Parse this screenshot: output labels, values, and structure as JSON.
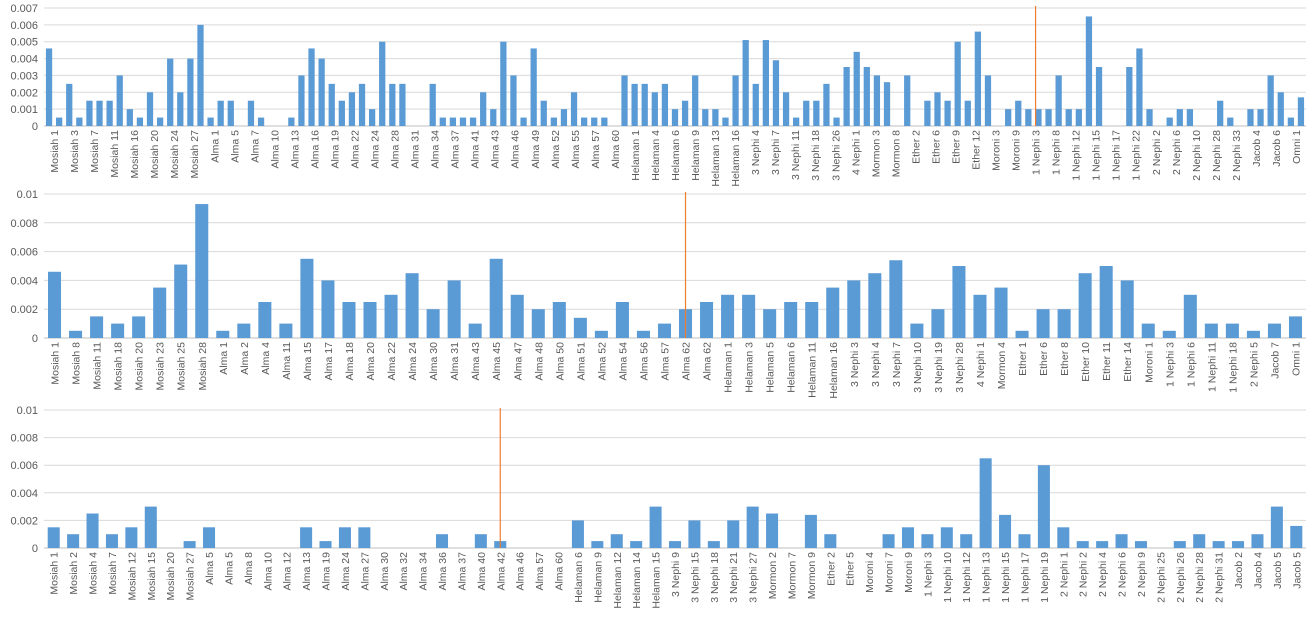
{
  "colors": {
    "bar": "#5b9bd5",
    "divider": "#ed7d31",
    "grid": "#d9d9d9",
    "axis": "#bfbfbf",
    "text": "#595959"
  },
  "chart_data": [
    {
      "type": "bar",
      "ylim": [
        0,
        0.007
      ],
      "yticks": [
        "0",
        "0.001",
        "0.002",
        "0.003",
        "0.004",
        "0.005",
        "0.006",
        "0.007"
      ],
      "grid": true,
      "divider_after_index": 49,
      "tick_labels": [
        "Mosiah 1",
        "Mosiah 3",
        "Mosiah 7",
        "Mosiah 11",
        "Mosiah 16",
        "Mosiah 20",
        "Mosiah 24",
        "Mosiah 27",
        "Alma 1",
        "Alma 5",
        "Alma 7",
        "Alma 10",
        "Alma 13",
        "Alma 16",
        "Alma 19",
        "Alma 22",
        "Alma 24",
        "Alma 28",
        "Alma 31",
        "Alma 34",
        "Alma 37",
        "Alma 41",
        "Alma 43",
        "Alma 46",
        "Alma 49",
        "Alma 52",
        "Alma 55",
        "Alma 57",
        "Alma 60",
        "Helaman 1",
        "Helaman 4",
        "Helaman 6",
        "Helaman 9",
        "Helaman 13",
        "Helaman 16",
        "3 Nephi 4",
        "3 Nephi 7",
        "3 Nephi 11",
        "3 Nephi 18",
        "3 Nephi 26",
        "4 Nephi 1",
        "Mormon 3",
        "Mormon 8",
        "Ether 2",
        "Ether 6",
        "Ether 9",
        "Ether 12",
        "Moroni 3",
        "Moroni 9",
        "1 Nephi 3",
        "1 Nephi 8",
        "1 Nephi 12",
        "1 Nephi 15",
        "1 Nephi 17",
        "1 Nephi 22",
        "2 Nephi 2",
        "2 Nephi 6",
        "2 Nephi 10",
        "2 Nephi 28",
        "2 Nephi 33",
        "Jacob 4",
        "Jacob 6",
        "Omni 1"
      ],
      "values": [
        0.0046,
        0.0005,
        0.0025,
        0.0005,
        0.0015,
        0.0015,
        0.0015,
        0.003,
        0.001,
        0.0005,
        0.002,
        0.0005,
        0.004,
        0.002,
        0.004,
        0.006,
        0.0005,
        0.0015,
        0.0015,
        0,
        0.0015,
        0.0005,
        0,
        0,
        0.0005,
        0.003,
        0.0046,
        0.004,
        0.0025,
        0.0015,
        0.002,
        0.0025,
        0.001,
        0.005,
        0.0025,
        0.0025,
        0,
        0,
        0.0025,
        0.0005,
        0.0005,
        0.0005,
        0.0005,
        0.002,
        0.001,
        0.005,
        0.003,
        0.0005,
        0.0046,
        0.0015,
        0.0005,
        0.001,
        0.002,
        0.0005,
        0.0005,
        0.0005,
        0,
        0.003,
        0.0025,
        0.0025,
        0.002,
        0.0025,
        0.001,
        0.0015,
        0.003,
        0.001,
        0.001,
        0.0005,
        0.003,
        0.0051,
        0.0025,
        0.0051,
        0.0039,
        0.002,
        0.0005,
        0.0015,
        0.0015,
        0.0025,
        0.0005,
        0.0035,
        0.0044,
        0.0035,
        0.003,
        0.0026,
        0,
        0.003,
        0,
        0.0015,
        0.002,
        0.0015,
        0.005,
        0.0015,
        0.0056,
        0.003,
        0,
        0.001,
        0.0015,
        0.001,
        0.001,
        0.001,
        0.003,
        0.001,
        0.001,
        0.0065,
        0.0035,
        0,
        0,
        0.0035,
        0.0046,
        0.001,
        0,
        0.0005,
        0.001,
        0.001,
        0,
        0,
        0.0015,
        0.0005,
        0,
        0.001,
        0.001,
        0.003,
        0.002,
        0.0005,
        0.0017
      ]
    },
    {
      "type": "bar",
      "ylim": [
        0,
        0.01
      ],
      "yticks": [
        "0",
        "0.002",
        "0.004",
        "0.006",
        "0.008",
        "0.01"
      ],
      "grid": true,
      "divider_after_index": 30,
      "tick_labels": [
        "Mosiah 1",
        "Mosiah 8",
        "Mosiah 11",
        "Mosiah 18",
        "Mosiah 20",
        "Mosiah 23",
        "Mosiah 25",
        "Mosiah 28",
        "Alma 1",
        "Alma 2",
        "Alma 4",
        "Alma 11",
        "Alma 15",
        "Alma 17",
        "Alma 18",
        "Alma 20",
        "Alma 22",
        "Alma 24",
        "Alma 30",
        "Alma 31",
        "Alma 43",
        "Alma 45",
        "Alma 47",
        "Alma 48",
        "Alma 50",
        "Alma 51",
        "Alma 52",
        "Alma 54",
        "Alma 56",
        "Alma 57",
        "Alma 62",
        "Alma 62",
        "Helaman 1",
        "Helaman 3",
        "Helaman 5",
        "Helaman 6",
        "Helaman 11",
        "Helaman 16",
        "3 Nephi 3",
        "3 Nephi 4",
        "3 Nephi 7",
        "3 Nephi 10",
        "3 Nephi 19",
        "3 Nephi 28",
        "4 Nephi 1",
        "Mormon 4",
        "Ether 1",
        "Ether 6",
        "Ether 8",
        "Ether 10",
        "Ether 11",
        "Ether 14",
        "Moroni 1",
        "1 Nephi 3",
        "1 Nephi 6",
        "1 Nephi 11",
        "1 Nephi 18",
        "2 Nephi 5",
        "Jacob 7",
        "Omni 1"
      ],
      "values": [
        0.0046,
        0.0005,
        0.0015,
        0.001,
        0.0015,
        0.0035,
        0.0051,
        0.0093,
        0.0005,
        0.001,
        0.0025,
        0.001,
        0.0055,
        0.004,
        0.0025,
        0.0025,
        0.003,
        0.0045,
        0.002,
        0.004,
        0.001,
        0.0055,
        0.003,
        0.002,
        0.0025,
        0.0014,
        0.0005,
        0.0025,
        0.0005,
        0.001,
        0.002,
        0.0025,
        0.003,
        0.003,
        0.002,
        0.0025,
        0.0025,
        0.0035,
        0.004,
        0.0045,
        0.0054,
        0.001,
        0.002,
        0.005,
        0.003,
        0.0035,
        0.0005,
        0.002,
        0.002,
        0.0045,
        0.005,
        0.004,
        0.001,
        0.0005,
        0.003,
        0.001,
        0.001,
        0.0005,
        0.001,
        0.0015
      ]
    },
    {
      "type": "bar",
      "ylim": [
        0,
        0.01
      ],
      "yticks": [
        "0",
        "0.002",
        "0.004",
        "0.006",
        "0.008",
        "0.01"
      ],
      "grid": true,
      "divider_after_index": 23,
      "tick_labels": [
        "Mosiah 1",
        "Mosiah 2",
        "Mosiah 4",
        "Mosiah 7",
        "Mosiah 12",
        "Mosiah 15",
        "Mosiah 20",
        "Mosiah 27",
        "Alma 5",
        "Alma 5",
        "Alma 8",
        "Alma 10",
        "Alma 12",
        "Alma 13",
        "Alma 19",
        "Alma 24",
        "Alma 27",
        "Alma 30",
        "Alma 32",
        "Alma 34",
        "Alma 36",
        "Alma 37",
        "Alma 40",
        "Alma 42",
        "Alma 46",
        "Alma 57",
        "Alma 60",
        "Helaman 6",
        "Helaman 9",
        "Helaman 12",
        "Helaman 14",
        "Helaman 15",
        "3 Nephi 9",
        "3 Nephi 15",
        "3 Nephi 18",
        "3 Nephi 21",
        "3 Nephi 27",
        "Mormon 2",
        "Mormon 7",
        "Mormon 9",
        "Ether 2",
        "Ether 5",
        "Moroni 4",
        "Moroni 7",
        "Moroni 9",
        "1 Nephi 3",
        "1 Nephi 10",
        "1 Nephi 12",
        "1 Nephi 13",
        "1 Nephi 15",
        "1 Nephi 17",
        "1 Nephi 19",
        "2 Nephi 1",
        "2 Nephi 2",
        "2 Nephi 4",
        "2 Nephi 6",
        "2 Nephi 9",
        "2 Nephi 25",
        "2 Nephi 26",
        "2 Nephi 28",
        "2 Nephi 31",
        "Jacob 2",
        "Jacob 4",
        "Jacob 5",
        "Jacob 5"
      ],
      "values": [
        0.0015,
        0.001,
        0.0025,
        0.001,
        0.0015,
        0.003,
        0,
        0.0005,
        0.0015,
        0,
        0,
        0,
        0,
        0.0015,
        0.0005,
        0.0015,
        0.0015,
        0,
        0,
        0,
        0.001,
        0,
        0.001,
        0.0005,
        0,
        0,
        0,
        0.002,
        0.0005,
        0.001,
        0.0005,
        0.003,
        0.0005,
        0.002,
        0.0005,
        0.002,
        0.003,
        0.0025,
        0,
        0.0024,
        0.001,
        0,
        0,
        0.001,
        0.0015,
        0.001,
        0.0015,
        0.001,
        0.0065,
        0.0024,
        0.001,
        0.006,
        0.0015,
        0.0005,
        0.0005,
        0.001,
        0.0005,
        0,
        0.0005,
        0.001,
        0.0005,
        0.0005,
        0.001,
        0.003,
        0.0016
      ]
    }
  ]
}
